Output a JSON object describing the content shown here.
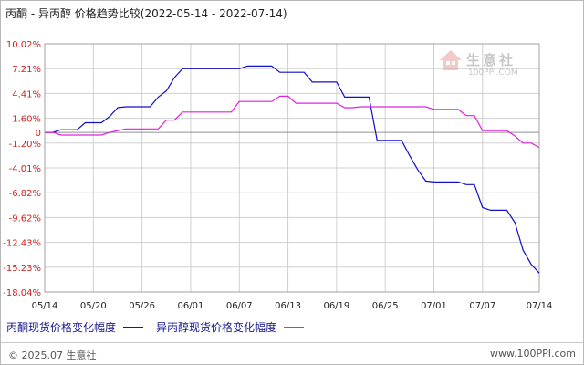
{
  "title": "丙酮 - 异丙醇 价格趋势比较(2022-05-14 - 2022-07-14)",
  "watermark": {
    "name": "生意社",
    "url": "100PPI.COM"
  },
  "legend": [
    {
      "label": "丙酮现货价格变化幅度",
      "color": "#1010c8"
    },
    {
      "label": "异丙醇现货价格变化幅度",
      "color": "#e020e0"
    }
  ],
  "footer": {
    "left": "© 2025.07 生意社",
    "right": "www.100PPI.com"
  },
  "chart_data": {
    "type": "line",
    "title": "丙酮 - 异丙醇 价格趋势比较(2022-05-14 - 2022-07-14)",
    "ytick_labels": [
      "10.02%",
      "7.21%",
      "4.41%",
      "1.60%",
      "0",
      "-1.20%",
      "-4.01%",
      "-6.82%",
      "-9.62%",
      "-12.43%",
      "-15.23%",
      "-18.04%"
    ],
    "yticks": [
      10.02,
      7.21,
      4.41,
      1.6,
      0,
      -1.2,
      -4.01,
      -6.82,
      -9.62,
      -12.43,
      -15.23,
      -18.04
    ],
    "ylim": [
      -18.04,
      10.02
    ],
    "xtick_labels": [
      "05/14",
      "05/20",
      "05/26",
      "06/01",
      "06/07",
      "06/13",
      "06/19",
      "06/25",
      "07/01",
      "07/07",
      "07/14"
    ],
    "xtick_days": [
      0,
      6,
      12,
      18,
      24,
      30,
      36,
      42,
      48,
      54,
      61
    ],
    "grid": true,
    "legend_position": "bottom",
    "series": [
      {
        "name": "丙酮现货价格变化幅度",
        "color": "#1010c8",
        "x": [
          0,
          1,
          2,
          3,
          4,
          5,
          6,
          7,
          8,
          9,
          10,
          11,
          12,
          13,
          14,
          15,
          16,
          17,
          18,
          19,
          20,
          21,
          22,
          23,
          24,
          25,
          26,
          27,
          28,
          29,
          30,
          31,
          32,
          33,
          34,
          35,
          36,
          37,
          38,
          39,
          40,
          41,
          42,
          43,
          44,
          45,
          46,
          47,
          48,
          49,
          50,
          51,
          52,
          53,
          54,
          55,
          56,
          57,
          58,
          59,
          60,
          61
        ],
        "y": [
          0,
          0,
          0.3,
          0.3,
          0.3,
          1.1,
          1.1,
          1.1,
          1.8,
          2.8,
          2.9,
          2.9,
          2.9,
          2.9,
          4.0,
          4.7,
          6.2,
          7.2,
          7.2,
          7.2,
          7.2,
          7.2,
          7.2,
          7.2,
          7.2,
          7.5,
          7.5,
          7.5,
          7.5,
          6.8,
          6.8,
          6.8,
          6.8,
          5.7,
          5.7,
          5.7,
          5.7,
          4.0,
          4.0,
          4.0,
          4.0,
          -0.9,
          -0.9,
          -0.9,
          -0.9,
          -2.6,
          -4.2,
          -5.5,
          -5.6,
          -5.6,
          -5.6,
          -5.6,
          -5.9,
          -5.9,
          -8.5,
          -8.8,
          -8.8,
          -8.8,
          -10.2,
          -13.3,
          -14.9,
          -15.9
        ]
      },
      {
        "name": "异丙醇现货价格变化幅度",
        "color": "#e020e0",
        "x": [
          0,
          1,
          2,
          3,
          4,
          5,
          6,
          7,
          8,
          9,
          10,
          11,
          12,
          13,
          14,
          15,
          16,
          17,
          18,
          19,
          20,
          21,
          22,
          23,
          24,
          25,
          26,
          27,
          28,
          29,
          30,
          31,
          32,
          33,
          34,
          35,
          36,
          37,
          38,
          39,
          40,
          41,
          42,
          43,
          44,
          45,
          46,
          47,
          48,
          49,
          50,
          51,
          52,
          53,
          54,
          55,
          56,
          57,
          58,
          59,
          60,
          61
        ],
        "y": [
          0,
          0,
          -0.3,
          -0.3,
          -0.3,
          -0.3,
          -0.3,
          -0.3,
          0,
          0.2,
          0.4,
          0.4,
          0.4,
          0.4,
          0.4,
          1.4,
          1.4,
          2.3,
          2.3,
          2.3,
          2.3,
          2.3,
          2.3,
          2.3,
          3.5,
          3.5,
          3.5,
          3.5,
          3.5,
          4.1,
          4.1,
          3.3,
          3.3,
          3.3,
          3.3,
          3.3,
          3.3,
          2.8,
          2.8,
          2.9,
          2.9,
          2.9,
          2.9,
          2.9,
          2.9,
          2.9,
          2.9,
          2.9,
          2.6,
          2.6,
          2.6,
          2.6,
          1.9,
          1.9,
          0.2,
          0.2,
          0.2,
          0.2,
          -0.4,
          -1.2,
          -1.2,
          -1.7
        ]
      }
    ]
  }
}
